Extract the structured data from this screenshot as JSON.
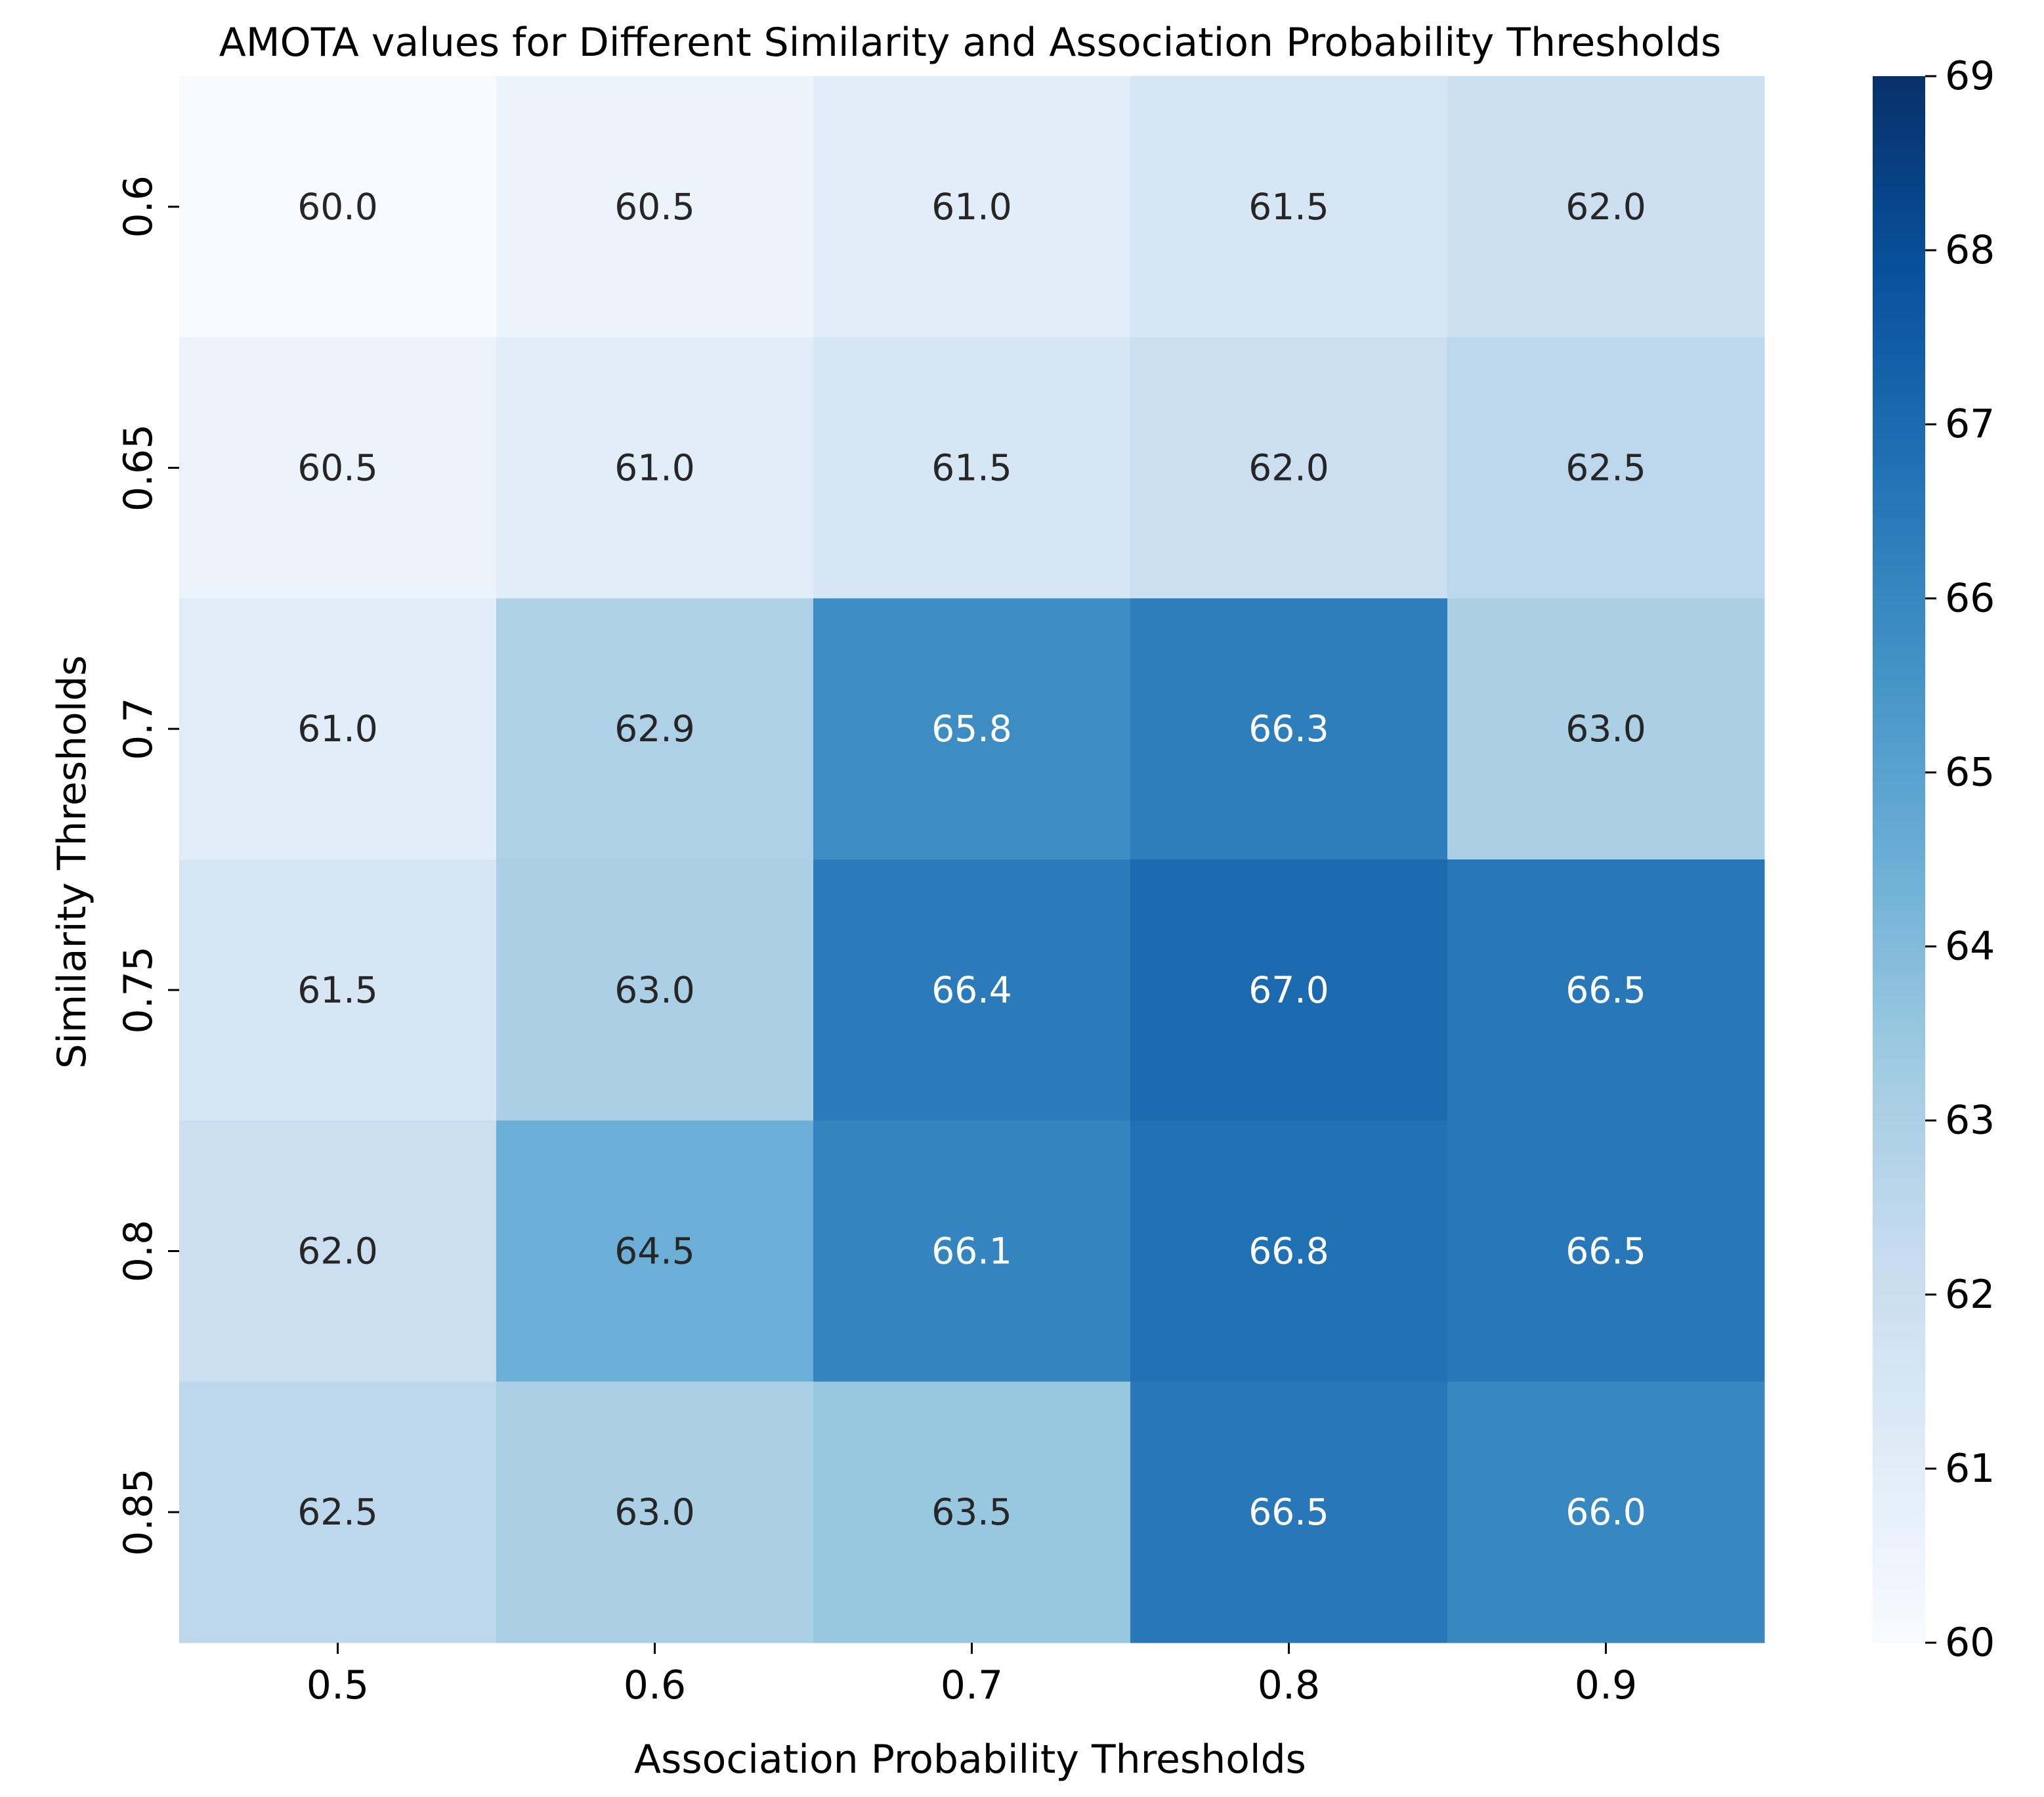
{
  "chart_data": {
    "type": "heatmap",
    "title": "AMOTA values for Different Similarity and Association Probability Thresholds",
    "xlabel": "Association Probability Thresholds",
    "ylabel": "Similarity Thresholds",
    "x_categories": [
      "0.5",
      "0.6",
      "0.7",
      "0.8",
      "0.9"
    ],
    "y_categories": [
      "0.6",
      "0.65",
      "0.7",
      "0.75",
      "0.8",
      "0.85"
    ],
    "values": [
      [
        60.0,
        60.5,
        61.0,
        61.5,
        62.0
      ],
      [
        60.5,
        61.0,
        61.5,
        62.0,
        62.5
      ],
      [
        61.0,
        62.9,
        65.8,
        66.3,
        63.0
      ],
      [
        61.5,
        63.0,
        66.4,
        67.0,
        66.5
      ],
      [
        62.0,
        64.5,
        66.1,
        66.8,
        66.5
      ],
      [
        62.5,
        63.0,
        63.5,
        66.5,
        66.0
      ]
    ],
    "value_format": "0.0",
    "colormap": "Blues",
    "colorbar": {
      "range": [
        60,
        69
      ],
      "ticks": [
        "60",
        "61",
        "62",
        "63",
        "64",
        "65",
        "66",
        "67",
        "68",
        "69"
      ]
    }
  }
}
